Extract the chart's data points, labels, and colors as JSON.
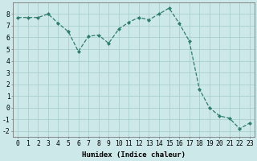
{
  "x": [
    0,
    1,
    2,
    3,
    4,
    5,
    6,
    7,
    8,
    9,
    10,
    11,
    12,
    13,
    14,
    15,
    16,
    17,
    18,
    19,
    20,
    21,
    22,
    23
  ],
  "y": [
    7.7,
    7.7,
    7.7,
    8.0,
    7.2,
    6.5,
    4.8,
    6.1,
    6.2,
    5.5,
    6.7,
    7.3,
    7.7,
    7.5,
    8.0,
    8.5,
    7.2,
    5.7,
    1.6,
    0.0,
    -0.7,
    -0.9,
    -1.8,
    -1.3
  ],
  "line_color": "#2e7d6e",
  "marker": "D",
  "marker_size": 2.0,
  "bg_color": "#cce8e8",
  "grid_color": "#aacece",
  "xlabel": "Humidex (Indice chaleur)",
  "xlim": [
    -0.5,
    23.5
  ],
  "ylim": [
    -2.5,
    9.0
  ],
  "yticks": [
    -2,
    -1,
    0,
    1,
    2,
    3,
    4,
    5,
    6,
    7,
    8
  ],
  "xticks": [
    0,
    1,
    2,
    3,
    4,
    5,
    6,
    7,
    8,
    9,
    10,
    11,
    12,
    13,
    14,
    15,
    16,
    17,
    18,
    19,
    20,
    21,
    22,
    23
  ],
  "xlabel_fontsize": 6.5,
  "tick_fontsize": 5.8,
  "linewidth": 0.9
}
